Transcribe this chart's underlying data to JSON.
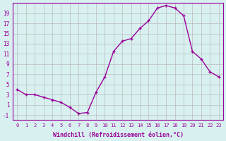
{
  "x": [
    0,
    1,
    2,
    3,
    4,
    5,
    6,
    7,
    8,
    9,
    10,
    11,
    12,
    13,
    14,
    15,
    16,
    17,
    18,
    19,
    20,
    21,
    22,
    23
  ],
  "y": [
    4,
    3,
    3,
    2.5,
    2,
    1.5,
    0.5,
    -0.7,
    -0.5,
    3.5,
    6.5,
    11.5,
    13.5,
    14,
    16,
    17.5,
    20,
    20.5,
    20,
    18.5,
    11.5,
    10,
    7.5,
    6.5
  ],
  "line_color": "#990099",
  "marker": "P",
  "marker_size": 3,
  "bg_color": "#d8f0f0",
  "grid_color": "#bbbbbb",
  "xlabel": "Windchill (Refroidissement éolien,°C)",
  "xlabel_color": "#990099",
  "ylabel_ticks": [
    -1,
    1,
    3,
    5,
    7,
    9,
    11,
    13,
    15,
    17,
    19
  ],
  "xlim": [
    -0.5,
    23.5
  ],
  "ylim": [
    -2,
    21
  ],
  "tick_color": "#990099",
  "spine_color": "#990099"
}
